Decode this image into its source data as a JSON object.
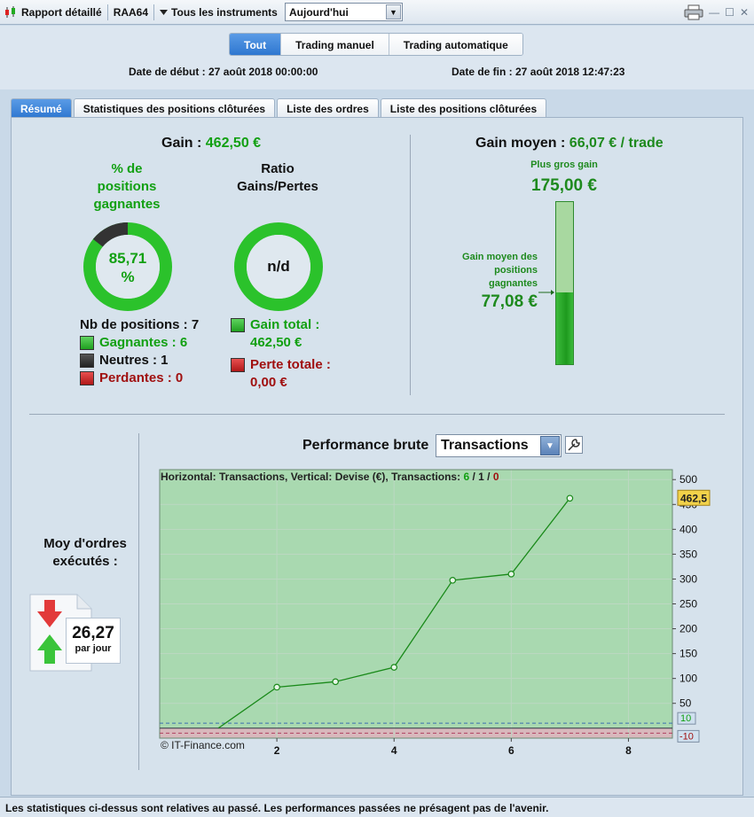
{
  "titlebar": {
    "app_title": "Rapport détaillé",
    "account": "RAA64",
    "instruments": "Tous les instruments",
    "period": "Aujourd'hui"
  },
  "header": {
    "modes": [
      "Tout",
      "Trading manuel",
      "Trading automatique"
    ],
    "active_mode": "Tout",
    "start_date": "Date de début : 27 août 2018 00:00:00",
    "end_date": "Date de fin : 27 août 2018 12:47:23"
  },
  "tabs": [
    "Résumé",
    "Statistiques des positions clôturées",
    "Liste des ordres",
    "Liste des positions clôturées"
  ],
  "summary": {
    "gain_label": "Gain : ",
    "gain_value": "462,50 €",
    "pct_title": "% de positions gagnantes",
    "pct_value": "85,71",
    "pct_unit": "%",
    "pct_fraction": 0.8571,
    "ratio_title": "Ratio Gains/Pertes",
    "ratio_value": "n/d",
    "nb_positions": "Nb de positions : 7",
    "winning": "Gagnantes : 6",
    "neutral": "Neutres : 1",
    "losing": "Perdantes : 0",
    "total_gain_label": "Gain total :",
    "total_gain_value": "462,50 €",
    "total_loss_label": "Perte totale :",
    "total_loss_value": "0,00 €"
  },
  "avg": {
    "label": "Gain moyen : ",
    "value": "66,07 € / trade",
    "biggest_label": "Plus gros gain",
    "biggest_value": "175,00 €",
    "avg_winning_label": "Gain moyen des positions gagnantes",
    "avg_winning_value": "77,08 €",
    "bar_fraction": 0.44
  },
  "orders": {
    "title": "Moy d'ordres exécutés :",
    "value": "26,27",
    "unit": "par jour"
  },
  "performance": {
    "title": "Performance brute",
    "selector": "Transactions",
    "legend_prefix": "Horizontal: Transactions, Vertical: Devise (€), Transactions: ",
    "legend_win": "6",
    "legend_neutral": "1",
    "legend_lose": "0",
    "copyright": "© IT-Finance.com",
    "last_value_tag": "462,5",
    "upper_tag": "10",
    "lower_tag": "-10"
  },
  "chart_data": {
    "type": "line",
    "x": [
      1,
      2,
      3,
      4,
      5,
      6,
      7
    ],
    "y": [
      0,
      82.5,
      93.5,
      122.5,
      297.5,
      310.0,
      462.5
    ],
    "xticks": [
      "2",
      "4",
      "6",
      "8"
    ],
    "yticks": [
      "50",
      "100",
      "150",
      "200",
      "250",
      "300",
      "350",
      "400",
      "450",
      "500"
    ],
    "xlim": [
      0,
      8.75
    ],
    "ylim": [
      -20,
      520
    ],
    "grid": true,
    "colors": {
      "line": "#1a8a1a",
      "positive_zone": "#a9d9b0",
      "negative_zone": "#d8b8bc"
    }
  },
  "footer": {
    "note": "Les statistiques ci-dessus sont relatives au passé. Les performances passées ne présagent pas de l'avenir."
  }
}
